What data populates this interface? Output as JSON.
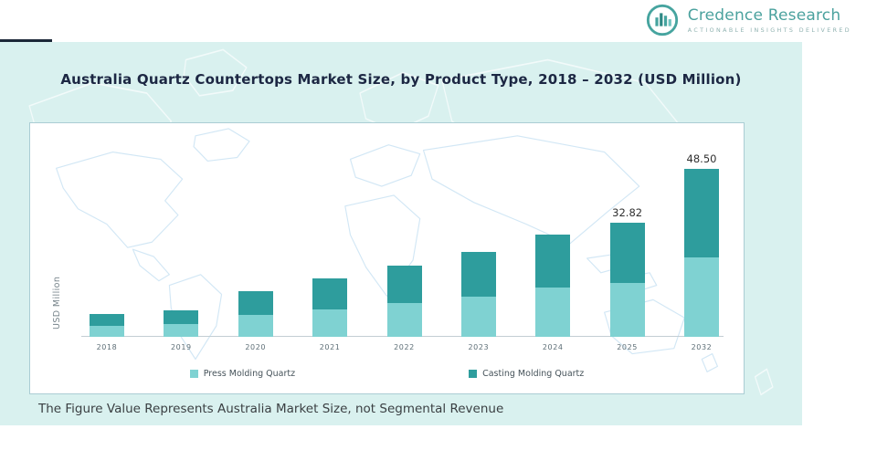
{
  "header": {
    "brand_name": "Credence Research",
    "brand_tagline": "Actionable Insights Delivered"
  },
  "chart": {
    "title": "Australia Quartz Countertops Market Size, by Product Type, 2018 – 2032 (USD Million)",
    "y_axis_label": "USD Million",
    "footnote": "The Figure Value Represents Australia Market Size, not Segmental Revenue"
  },
  "chart_data": {
    "type": "bar",
    "stacked": true,
    "title": "Australia Quartz Countertops Market Size, by Product Type, 2018 – 2032 (USD Million)",
    "xlabel": "",
    "ylabel": "USD Million",
    "categories": [
      "2018",
      "2019",
      "2020",
      "2021",
      "2022",
      "2023",
      "2024",
      "2025",
      "2032"
    ],
    "series": [
      {
        "name": "Press Molding Quartz",
        "color": "#7FD2D2",
        "values": [
          3.2,
          3.6,
          6.2,
          8.0,
          9.7,
          11.7,
          14.1,
          15.6,
          23.0
        ]
      },
      {
        "name": "Casting Molding Quartz",
        "color": "#2E9D9D",
        "values": [
          3.5,
          4.0,
          6.9,
          8.8,
          10.7,
          12.9,
          15.5,
          17.22,
          25.5
        ]
      }
    ],
    "totals_labeled": {
      "2025": "32.82",
      "2032": "48.50"
    },
    "ylim": [
      0,
      50
    ],
    "grid": false,
    "legend_position": "bottom"
  },
  "colors": {
    "panel_background": "#D9F1EF",
    "press_molding": "#7FD2D2",
    "casting_molding": "#2E9D9D",
    "brand_teal": "#4BA29E",
    "title_navy": "#1C2743"
  }
}
